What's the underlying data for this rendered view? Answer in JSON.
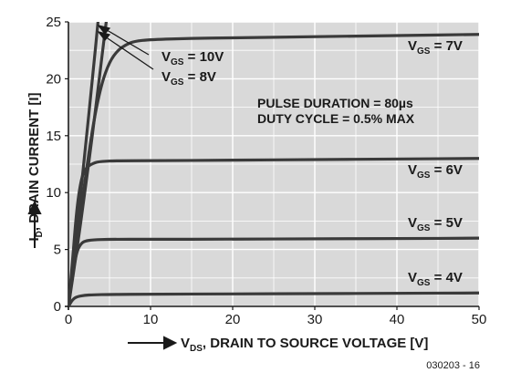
{
  "chart_data": {
    "type": "line",
    "xlim": [
      0,
      50
    ],
    "ylim": [
      0,
      25
    ],
    "x_ticks": [
      "0",
      "10",
      "20",
      "30",
      "40",
      "50"
    ],
    "y_ticks": [
      "0",
      "5",
      "10",
      "15",
      "20",
      "25"
    ],
    "grid": true,
    "xlabel": {
      "prefix": "V",
      "sub": "DS",
      "rest": ", DRAIN TO SOURCE VOLTAGE [V]"
    },
    "ylabel": {
      "prefix": "I",
      "sub": "D",
      "rest": ", DRAIN CURRENT [I]"
    },
    "annotations": [
      "PULSE DURATION = 80µs",
      "DUTY CYCLE = 0.5% MAX"
    ],
    "figure_code": "030203 - 16",
    "series": [
      {
        "name": "VGS = 10V",
        "label": {
          "sub": "GS",
          "value": "= 10V"
        },
        "x": [
          0,
          1,
          2,
          3,
          4,
          4.6
        ],
        "y": [
          0,
          4.8,
          10,
          15.5,
          21.5,
          25
        ]
      },
      {
        "name": "VGS = 8V",
        "label": {
          "sub": "GS",
          "value": "= 8V"
        },
        "x": [
          0,
          1,
          2,
          3,
          3.6
        ],
        "y": [
          0,
          6.5,
          13.5,
          20.5,
          25
        ]
      },
      {
        "name": "VGS = 7V",
        "label": {
          "sub": "GS",
          "value": "= 7V"
        },
        "x": [
          0,
          1,
          2,
          3,
          4,
          5,
          6,
          7,
          8,
          10,
          15,
          20,
          30,
          40,
          50
        ],
        "y": [
          0,
          5.5,
          11,
          16,
          19.5,
          21.5,
          22.5,
          23.0,
          23.3,
          23.45,
          23.55,
          23.6,
          23.7,
          23.8,
          23.9
        ]
      },
      {
        "name": "VGS = 6V",
        "label": {
          "sub": "GS",
          "value": "= 6V"
        },
        "x": [
          0,
          0.5,
          1,
          1.5,
          2,
          3,
          4,
          6,
          10,
          20,
          30,
          40,
          50
        ],
        "y": [
          0,
          4,
          8.5,
          11,
          12.1,
          12.6,
          12.75,
          12.8,
          12.8,
          12.85,
          12.9,
          12.95,
          13.0
        ]
      },
      {
        "name": "VGS = 5V",
        "label": {
          "sub": "GS",
          "value": "= 5V"
        },
        "x": [
          0,
          0.5,
          1,
          1.5,
          2,
          3,
          5,
          10,
          20,
          30,
          40,
          50
        ],
        "y": [
          0,
          2.8,
          4.8,
          5.5,
          5.75,
          5.85,
          5.9,
          5.9,
          5.9,
          5.95,
          5.95,
          6.0
        ]
      },
      {
        "name": "VGS = 4V",
        "label": {
          "sub": "GS",
          "value": "= 4V"
        },
        "x": [
          0,
          0.5,
          1,
          2,
          3,
          5,
          10,
          20,
          30,
          40,
          50
        ],
        "y": [
          0,
          0.6,
          0.85,
          0.98,
          1.02,
          1.05,
          1.07,
          1.1,
          1.12,
          1.15,
          1.18
        ]
      }
    ]
  }
}
